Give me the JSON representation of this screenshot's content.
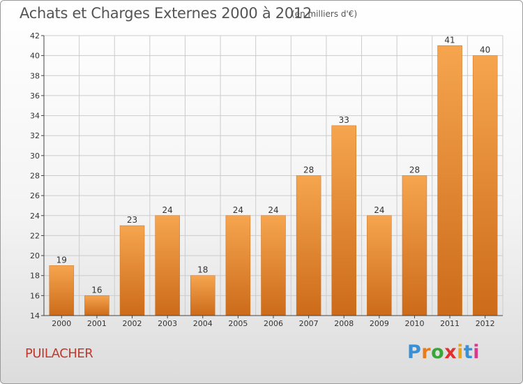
{
  "header": {
    "title": "Achats et Charges Externes 2000 à 2012",
    "subtitle": "(en milliers d'€)"
  },
  "place_label": "PUILACHER",
  "logo": {
    "text": "Proxiti",
    "letters": [
      "P",
      "r",
      "o",
      "x",
      "i",
      "t",
      "i"
    ]
  },
  "colors": {
    "bar_light": "#f6a54f",
    "bar_dark": "#cc6b1a",
    "grid": "#cccccc",
    "axis": "#444444",
    "place": "#c0392b"
  },
  "chart_data": {
    "type": "bar",
    "title": "Achats et Charges Externes 2000 à 2012",
    "subtitle": "(en milliers d'€)",
    "xlabel": "",
    "ylabel": "",
    "categories": [
      "2000",
      "2001",
      "2002",
      "2003",
      "2004",
      "2005",
      "2006",
      "2007",
      "2008",
      "2009",
      "2010",
      "2011",
      "2012"
    ],
    "values": [
      19,
      16,
      23,
      24,
      18,
      24,
      24,
      28,
      33,
      24,
      28,
      41,
      40
    ],
    "ylim": [
      14,
      42
    ],
    "yticks": [
      14,
      16,
      18,
      20,
      22,
      24,
      26,
      28,
      30,
      32,
      34,
      36,
      38,
      40,
      42
    ],
    "grid": true
  }
}
